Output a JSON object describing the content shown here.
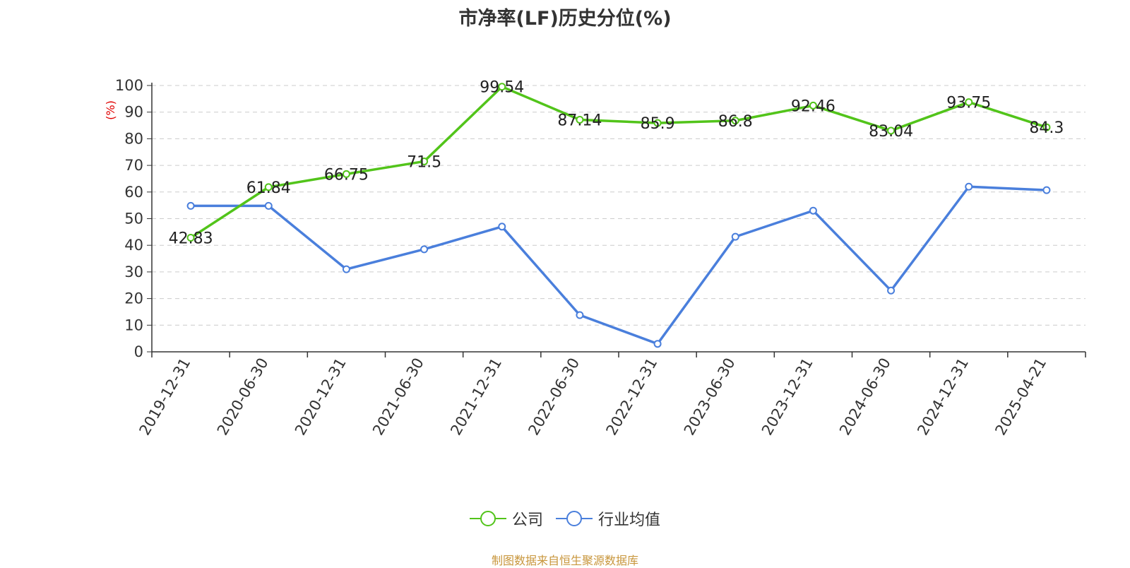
{
  "title": "市净率(LF)历史分位(%)",
  "legend": {
    "company_label": "公司",
    "industry_label": "行业均值"
  },
  "source_text": "制图数据来自恒生聚源数据库",
  "colors": {
    "company": "#52c41a",
    "industry": "#4a7fdc",
    "axis": "#333333",
    "grid": "#cccccc",
    "yunit": "#e00000",
    "source": "#c8963c"
  },
  "chart_data": {
    "type": "line",
    "title": "市净率(LF)历史分位(%)",
    "ylabel": "(%)",
    "ylim": [
      0,
      100
    ],
    "yticks": [
      0,
      10,
      20,
      30,
      40,
      50,
      60,
      70,
      80,
      90,
      100
    ],
    "grid": true,
    "legend_position": "bottom",
    "categories": [
      "2019-12-31",
      "2020-06-30",
      "2020-12-31",
      "2021-06-30",
      "2021-12-31",
      "2022-06-30",
      "2022-12-31",
      "2023-06-30",
      "2023-12-31",
      "2024-06-30",
      "2024-12-31",
      "2025-04-21"
    ],
    "series": [
      {
        "name": "公司",
        "values": [
          42.83,
          61.84,
          66.75,
          71.5,
          99.54,
          87.14,
          85.9,
          86.8,
          92.46,
          83.04,
          93.75,
          84.3
        ],
        "labels": [
          "42.83",
          "61.84",
          "66.75",
          "71.5",
          "99.54",
          "87.14",
          "85.9",
          "86.8",
          "92.46",
          "83.04",
          "93.75",
          "84.3"
        ]
      },
      {
        "name": "行业均值",
        "values": [
          54.8,
          54.8,
          31,
          38.5,
          47,
          13.8,
          3,
          43.2,
          53,
          23,
          62,
          60.7
        ]
      }
    ]
  }
}
